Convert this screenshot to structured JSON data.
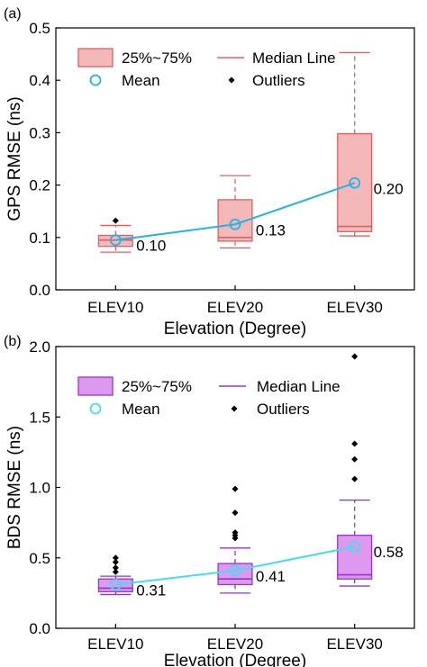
{
  "chart_data": [
    {
      "panel_label": "(a)",
      "type": "box",
      "xlabel": "Elevation (Degree)",
      "ylabel": "GPS RMSE (ns)",
      "categories": [
        "ELEV10",
        "ELEV20",
        "ELEV30"
      ],
      "ylim": [
        0,
        0.5
      ],
      "yticks": [
        "0.0",
        "0.1",
        "0.2",
        "0.3",
        "0.4",
        "0.5"
      ],
      "box_color": "#f4b8b8",
      "line_color": "#e06060",
      "mean_color": "#22b4e8",
      "legend": {
        "box": "25%~75%",
        "median": "Median Line",
        "mean": "Mean",
        "outliers": "Outliers"
      },
      "boxes": [
        {
          "whisker_low": 0.072,
          "q1": 0.083,
          "median": 0.095,
          "q3": 0.104,
          "whisker_high": 0.123,
          "mean": 0.095,
          "outliers": [
            0.132
          ]
        },
        {
          "whisker_low": 0.08,
          "q1": 0.093,
          "median": 0.1,
          "q3": 0.172,
          "whisker_high": 0.218,
          "mean": 0.125,
          "outliers": []
        },
        {
          "whisker_low": 0.103,
          "q1": 0.111,
          "median": 0.121,
          "q3": 0.298,
          "whisker_high": 0.453,
          "mean": 0.204,
          "outliers": []
        }
      ],
      "mean_labels": [
        "0.10",
        "0.13",
        "0.20"
      ]
    },
    {
      "panel_label": "(b)",
      "type": "box",
      "xlabel": "Elevation (Degree)",
      "ylabel": "BDS RMSE (ns)",
      "categories": [
        "ELEV10",
        "ELEV20",
        "ELEV30"
      ],
      "ylim": [
        0,
        2.0
      ],
      "yticks": [
        "0.0",
        "0.5",
        "1.0",
        "1.5",
        "2.0"
      ],
      "box_color": "#dd99ee",
      "line_color": "#9933cc",
      "mean_color": "#44ddee",
      "legend": {
        "box": "25%~75%",
        "median": "Median Line",
        "mean": "Mean",
        "outliers": "Outliers"
      },
      "boxes": [
        {
          "whisker_low": 0.24,
          "q1": 0.26,
          "median": 0.285,
          "q3": 0.35,
          "whisker_high": 0.37,
          "mean": 0.31,
          "outliers": [
            0.4,
            0.43,
            0.47,
            0.5
          ]
        },
        {
          "whisker_low": 0.25,
          "q1": 0.31,
          "median": 0.35,
          "q3": 0.46,
          "whisker_high": 0.57,
          "mean": 0.41,
          "outliers": [
            0.64,
            0.66,
            0.68,
            0.82,
            0.99
          ]
        },
        {
          "whisker_low": 0.3,
          "q1": 0.35,
          "median": 0.38,
          "q3": 0.66,
          "whisker_high": 0.91,
          "mean": 0.58,
          "outliers": [
            1.06,
            1.2,
            1.31,
            1.93
          ]
        }
      ],
      "mean_labels": [
        "0.31",
        "0.41",
        "0.58"
      ]
    }
  ]
}
